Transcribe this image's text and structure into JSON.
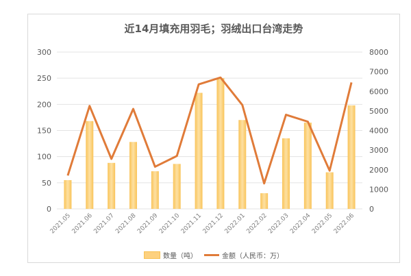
{
  "chart_data": {
    "type": "bar+line",
    "title": "近14月填充用羽毛；羽绒出口台湾走势",
    "categories": [
      "2021.05",
      "2021.06",
      "2021.07",
      "2021.08",
      "2021.09",
      "2021.10",
      "2021.11",
      "2021.12",
      "2022.01",
      "2022.02",
      "2022.03",
      "2022.04",
      "2022.05",
      "2022.06"
    ],
    "series": [
      {
        "name": "数量（吨）",
        "type": "bar",
        "axis": "left",
        "color": "#fdd17f",
        "values": [
          55,
          168,
          88,
          128,
          72,
          86,
          222,
          250,
          170,
          30,
          135,
          165,
          70,
          198
        ]
      },
      {
        "name": "金额（人民币：万）",
        "type": "line",
        "axis": "right",
        "color": "#e07b39",
        "values": [
          1700,
          5250,
          2550,
          5100,
          2150,
          2700,
          6350,
          6700,
          5300,
          1300,
          4800,
          4450,
          1950,
          6450
        ]
      }
    ],
    "left_axis": {
      "ylim": [
        0,
        300
      ],
      "ticks": [
        "0",
        "50",
        "100",
        "150",
        "200",
        "250",
        "300"
      ]
    },
    "right_axis": {
      "ylim": [
        0,
        8000
      ],
      "ticks": [
        "0",
        "1000",
        "2000",
        "3000",
        "4000",
        "5000",
        "6000",
        "7000",
        "8000"
      ]
    },
    "grid": true,
    "legend_position": "bottom"
  },
  "legend": {
    "bar_label": "数量（吨）",
    "line_label": "金额（人民币：万）"
  }
}
